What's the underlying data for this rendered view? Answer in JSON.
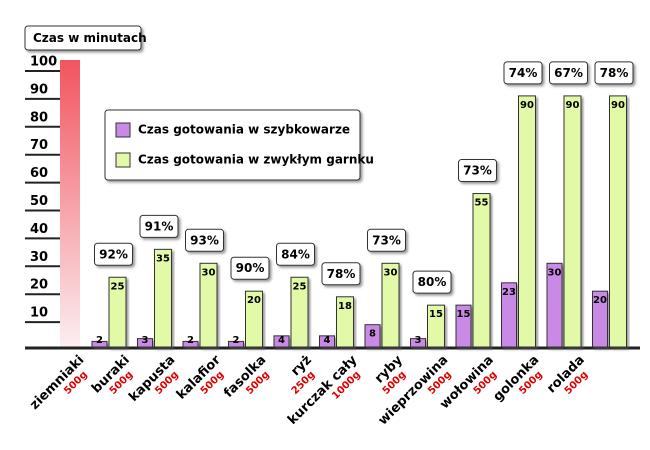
{
  "chart_data": {
    "type": "bar",
    "y_label": "Czas w minutach",
    "categories": [
      "ziemniaki",
      "buraki",
      "kapusta",
      "kalafior",
      "fasolka",
      "ryż",
      "kurczak cały",
      "ryby",
      "wieprzowina",
      "wołowina",
      "golonka",
      "rolada"
    ],
    "weights": [
      "500g",
      "500g",
      "500g",
      "500g",
      "500g",
      "250g",
      "1000g",
      "500g",
      "500g",
      "500g",
      "500g",
      "500g"
    ],
    "series": [
      {
        "name": "Czas gotowania w szybkowarze",
        "color": "#c98ae6",
        "values": [
          2,
          3,
          2,
          2,
          4,
          4,
          8,
          3,
          15,
          23,
          30,
          20
        ]
      },
      {
        "name": "Czas gotowania w zwykłym garnku",
        "color": "#e2f9a8",
        "values": [
          25,
          35,
          30,
          20,
          25,
          18,
          30,
          15,
          55,
          90,
          90,
          90
        ]
      }
    ],
    "savings": [
      "92%",
      "91%",
      "93%",
      "90%",
      "84%",
      "78%",
      "73%",
      "80%",
      "73%",
      "74%",
      "67%",
      "78%"
    ],
    "ylim": [
      0,
      100
    ],
    "yticks": [
      10,
      20,
      30,
      40,
      50,
      60,
      70,
      80,
      90,
      100
    ]
  }
}
